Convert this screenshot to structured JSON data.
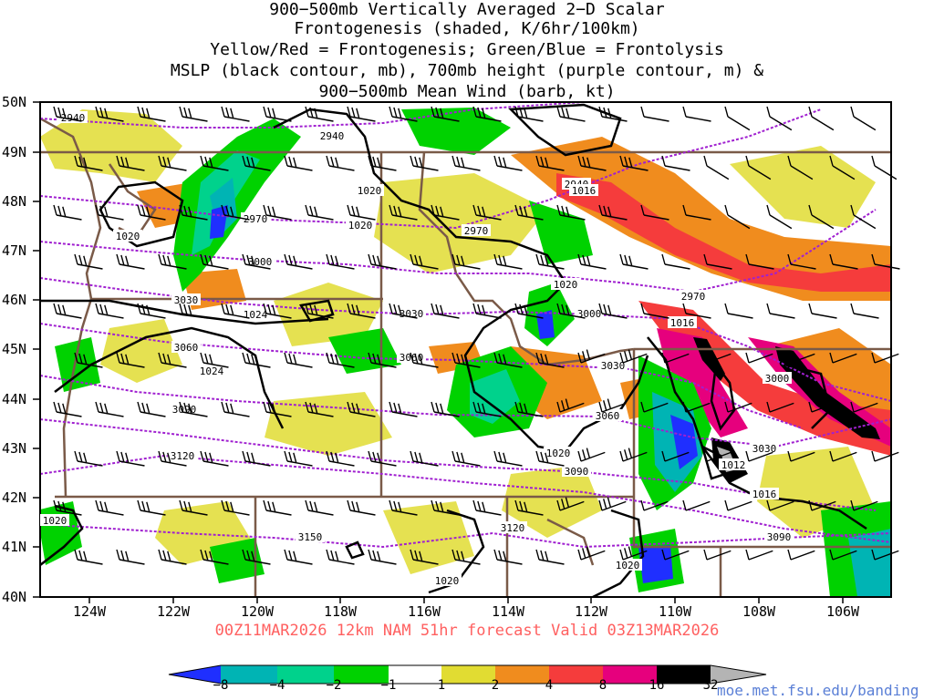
{
  "title_lines": [
    "900−500mb Vertically Averaged 2−D Scalar",
    "Frontogenesis (shaded, K/6hr/100km)",
    "Yellow/Red = Frontogenesis;  Green/Blue = Frontolysis",
    "MSLP (black contour, mb), 700mb height (purple contour, m) &",
    "900−500mb Mean Wind (barb, kt)"
  ],
  "lat_labels": [
    "50N",
    "49N",
    "48N",
    "47N",
    "46N",
    "45N",
    "44N",
    "43N",
    "42N",
    "41N",
    "40N"
  ],
  "lon_labels": [
    "124W",
    "122W",
    "120W",
    "118W",
    "116W",
    "114W",
    "112W",
    "110W",
    "108W",
    "106W"
  ],
  "height_contour_labels": [
    "2940",
    "2940",
    "2940",
    "2970",
    "2970",
    "2970",
    "3000",
    "3000",
    "3000",
    "3030",
    "3030",
    "3030",
    "3030",
    "3060",
    "3060",
    "3060",
    "3090",
    "3090",
    "3090",
    "3120",
    "3120",
    "3150"
  ],
  "mslp_contour_labels": [
    "1020",
    "1020",
    "1024",
    "1024",
    "1020",
    "1016",
    "1020",
    "1012",
    "1016",
    "1020",
    "1020",
    "1020",
    "1020",
    "1016"
  ],
  "valid_line": "00Z11MAR2026 12km NAM 51hr forecast Valid 03Z13MAR2026",
  "colorbar": {
    "labels": [
      "−8",
      "−4",
      "−2",
      "−1",
      "1",
      "2",
      "4",
      "8",
      "16",
      "32"
    ],
    "colors": [
      "#1f2fff",
      "#00b4b4",
      "#00d28c",
      "#00d200",
      "#ffffff",
      "#e1dc32",
      "#f08c1e",
      "#f53c3c",
      "#e6007d",
      "#000000",
      "#b4b4b4"
    ]
  },
  "credit": "moe.met.fsu.edu/banding"
}
